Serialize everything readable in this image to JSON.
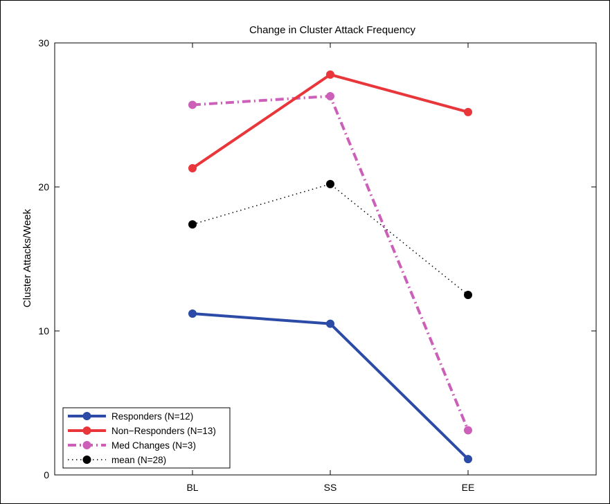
{
  "chart_data": {
    "type": "line",
    "title": "Change in Cluster Attack Frequency",
    "xlabel": "",
    "ylabel": "Cluster Attacks/Week",
    "categories": [
      "BL",
      "SS",
      "EE"
    ],
    "ylim": [
      0,
      30
    ],
    "yticks": [
      0,
      10,
      20,
      30
    ],
    "grid": false,
    "legend_position": "bottom-left",
    "series": [
      {
        "name": "Responders (N=12)",
        "values": [
          11.2,
          10.5,
          1.1
        ],
        "color": "#2b4ba6",
        "style": "solid-thick"
      },
      {
        "name": "Non−Responders (N=13)",
        "values": [
          21.3,
          27.8,
          25.2
        ],
        "color": "#e8363b",
        "style": "solid-thick"
      },
      {
        "name": "Med Changes (N=3)",
        "values": [
          25.7,
          26.3,
          3.1
        ],
        "color": "#cc5fb8",
        "style": "dashdot-thick"
      },
      {
        "name": "mean (N=28)",
        "values": [
          17.4,
          20.2,
          12.5
        ],
        "color": "#000000",
        "style": "dotted-thin"
      }
    ]
  }
}
